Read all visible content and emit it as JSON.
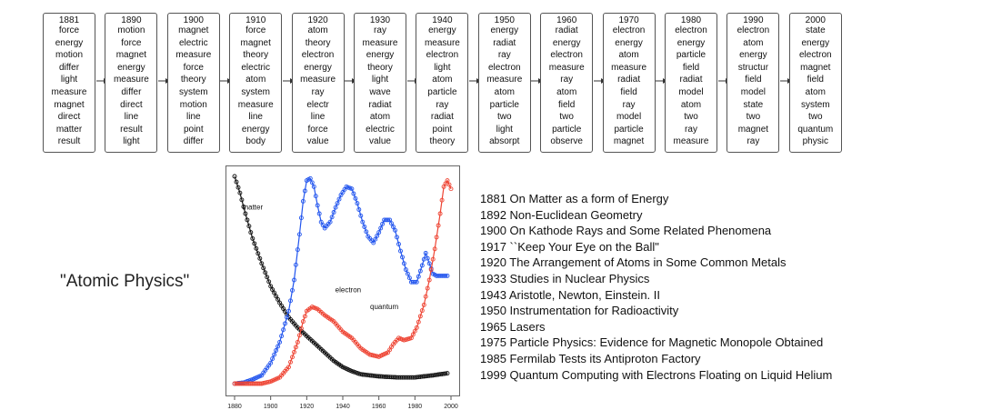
{
  "topics": [
    {
      "year": "1881",
      "words": [
        "force",
        "energy",
        "motion",
        "differ",
        "light",
        "measure",
        "magnet",
        "direct",
        "matter",
        "result"
      ]
    },
    {
      "year": "1890",
      "words": [
        "motion",
        "force",
        "magnet",
        "energy",
        "measure",
        "differ",
        "direct",
        "line",
        "result",
        "light"
      ]
    },
    {
      "year": "1900",
      "words": [
        "magnet",
        "electric",
        "measure",
        "force",
        "theory",
        "system",
        "motion",
        "line",
        "point",
        "differ"
      ]
    },
    {
      "year": "1910",
      "words": [
        "force",
        "magnet",
        "theory",
        "electric",
        "atom",
        "system",
        "measure",
        "line",
        "energy",
        "body"
      ]
    },
    {
      "year": "1920",
      "words": [
        "atom",
        "theory",
        "electron",
        "energy",
        "measure",
        "ray",
        "electr",
        "line",
        "force",
        "value"
      ]
    },
    {
      "year": "1930",
      "words": [
        "ray",
        "measure",
        "energy",
        "theory",
        "light",
        "wave",
        "radiat",
        "atom",
        "electric",
        "value"
      ]
    },
    {
      "year": "1940",
      "words": [
        "energy",
        "measure",
        "electron",
        "light",
        "atom",
        "particle",
        "ray",
        "radiat",
        "point",
        "theory"
      ]
    },
    {
      "year": "1950",
      "words": [
        "energy",
        "radiat",
        "ray",
        "electron",
        "measure",
        "atom",
        "particle",
        "two",
        "light",
        "absorpt"
      ]
    },
    {
      "year": "1960",
      "words": [
        "radiat",
        "energy",
        "electron",
        "measure",
        "ray",
        "atom",
        "field",
        "two",
        "particle",
        "observe"
      ]
    },
    {
      "year": "1970",
      "words": [
        "electron",
        "energy",
        "atom",
        "measure",
        "radiat",
        "field",
        "ray",
        "model",
        "particle",
        "magnet"
      ]
    },
    {
      "year": "1980",
      "words": [
        "electron",
        "energy",
        "particle",
        "field",
        "radiat",
        "model",
        "atom",
        "two",
        "ray",
        "measure"
      ]
    },
    {
      "year": "1990",
      "words": [
        "electron",
        "atom",
        "energy",
        "structur",
        "field",
        "model",
        "state",
        "two",
        "magnet",
        "ray"
      ]
    },
    {
      "year": "2000",
      "words": [
        "state",
        "energy",
        "electron",
        "magnet",
        "field",
        "atom",
        "system",
        "two",
        "quantum",
        "physic"
      ]
    }
  ],
  "side_title": "\"Atomic Physics\"",
  "publications": [
    "1881 On Matter as a form of Energy",
    "1892 Non-Euclidean Geometry",
    "1900 On Kathode Rays and Some Related Phenomena",
    "1917 ``Keep Your Eye on the Ball\"",
    "1920 The Arrangement of Atoms in Some Common Metals",
    "1933 Studies in Nuclear Physics",
    "1943 Aristotle, Newton, Einstein. II",
    "1950 Instrumentation for Radioactivity",
    "1965 Lasers",
    "1975 Particle Physics: Evidence for Magnetic Monopole Obtained",
    "1985 Fermilab Tests its Antiproton Factory",
    "1999 Quantum Computing with Electrons Floating on Liquid Helium"
  ],
  "chart_data": {
    "type": "line",
    "title": "",
    "xlabel": "",
    "ylabel": "",
    "xlim": [
      1880,
      2000
    ],
    "ylim": [
      0,
      1
    ],
    "x_ticks": [
      1880,
      1900,
      1920,
      1940,
      1960,
      1980,
      2000
    ],
    "grid": false,
    "series": [
      {
        "name": "matter",
        "color": "#111111",
        "label_at": [
          1890,
          0.84
        ],
        "points": [
          [
            1880,
            1.0
          ],
          [
            1883,
            0.92
          ],
          [
            1886,
            0.82
          ],
          [
            1890,
            0.7
          ],
          [
            1895,
            0.58
          ],
          [
            1900,
            0.47
          ],
          [
            1905,
            0.39
          ],
          [
            1910,
            0.32
          ],
          [
            1915,
            0.27
          ],
          [
            1920,
            0.23
          ],
          [
            1925,
            0.19
          ],
          [
            1930,
            0.15
          ],
          [
            1935,
            0.11
          ],
          [
            1940,
            0.08
          ],
          [
            1945,
            0.06
          ],
          [
            1950,
            0.045
          ],
          [
            1960,
            0.035
          ],
          [
            1970,
            0.03
          ],
          [
            1980,
            0.03
          ],
          [
            1990,
            0.04
          ],
          [
            1998,
            0.05
          ]
        ]
      },
      {
        "name": "electron",
        "color": "#2255ee",
        "label_at": [
          1943,
          0.44
        ],
        "points": [
          [
            1880,
            0.0
          ],
          [
            1885,
            0.005
          ],
          [
            1890,
            0.02
          ],
          [
            1895,
            0.04
          ],
          [
            1900,
            0.1
          ],
          [
            1905,
            0.2
          ],
          [
            1910,
            0.35
          ],
          [
            1913,
            0.5
          ],
          [
            1916,
            0.72
          ],
          [
            1918,
            0.88
          ],
          [
            1920,
            0.98
          ],
          [
            1922,
            0.99
          ],
          [
            1924,
            0.95
          ],
          [
            1926,
            0.86
          ],
          [
            1928,
            0.78
          ],
          [
            1930,
            0.75
          ],
          [
            1933,
            0.78
          ],
          [
            1936,
            0.85
          ],
          [
            1939,
            0.91
          ],
          [
            1942,
            0.95
          ],
          [
            1945,
            0.94
          ],
          [
            1948,
            0.87
          ],
          [
            1951,
            0.78
          ],
          [
            1954,
            0.71
          ],
          [
            1957,
            0.68
          ],
          [
            1960,
            0.73
          ],
          [
            1963,
            0.79
          ],
          [
            1966,
            0.79
          ],
          [
            1969,
            0.74
          ],
          [
            1972,
            0.64
          ],
          [
            1975,
            0.55
          ],
          [
            1978,
            0.49
          ],
          [
            1981,
            0.49
          ],
          [
            1984,
            0.57
          ],
          [
            1986,
            0.63
          ],
          [
            1988,
            0.58
          ],
          [
            1990,
            0.53
          ],
          [
            1992,
            0.52
          ],
          [
            1995,
            0.52
          ],
          [
            1998,
            0.52
          ]
        ]
      },
      {
        "name": "quantum",
        "color": "#ee4433",
        "label_at": [
          1963,
          0.36
        ],
        "points": [
          [
            1880,
            0.0
          ],
          [
            1895,
            0.0
          ],
          [
            1900,
            0.01
          ],
          [
            1905,
            0.03
          ],
          [
            1910,
            0.08
          ],
          [
            1915,
            0.2
          ],
          [
            1918,
            0.3
          ],
          [
            1920,
            0.35
          ],
          [
            1923,
            0.37
          ],
          [
            1926,
            0.36
          ],
          [
            1930,
            0.33
          ],
          [
            1935,
            0.3
          ],
          [
            1940,
            0.25
          ],
          [
            1945,
            0.22
          ],
          [
            1950,
            0.17
          ],
          [
            1955,
            0.14
          ],
          [
            1960,
            0.13
          ],
          [
            1965,
            0.15
          ],
          [
            1968,
            0.19
          ],
          [
            1971,
            0.22
          ],
          [
            1974,
            0.21
          ],
          [
            1978,
            0.22
          ],
          [
            1981,
            0.27
          ],
          [
            1985,
            0.38
          ],
          [
            1988,
            0.5
          ],
          [
            1991,
            0.65
          ],
          [
            1994,
            0.82
          ],
          [
            1996,
            0.95
          ],
          [
            1998,
            0.98
          ],
          [
            2000,
            0.94
          ]
        ]
      }
    ]
  }
}
